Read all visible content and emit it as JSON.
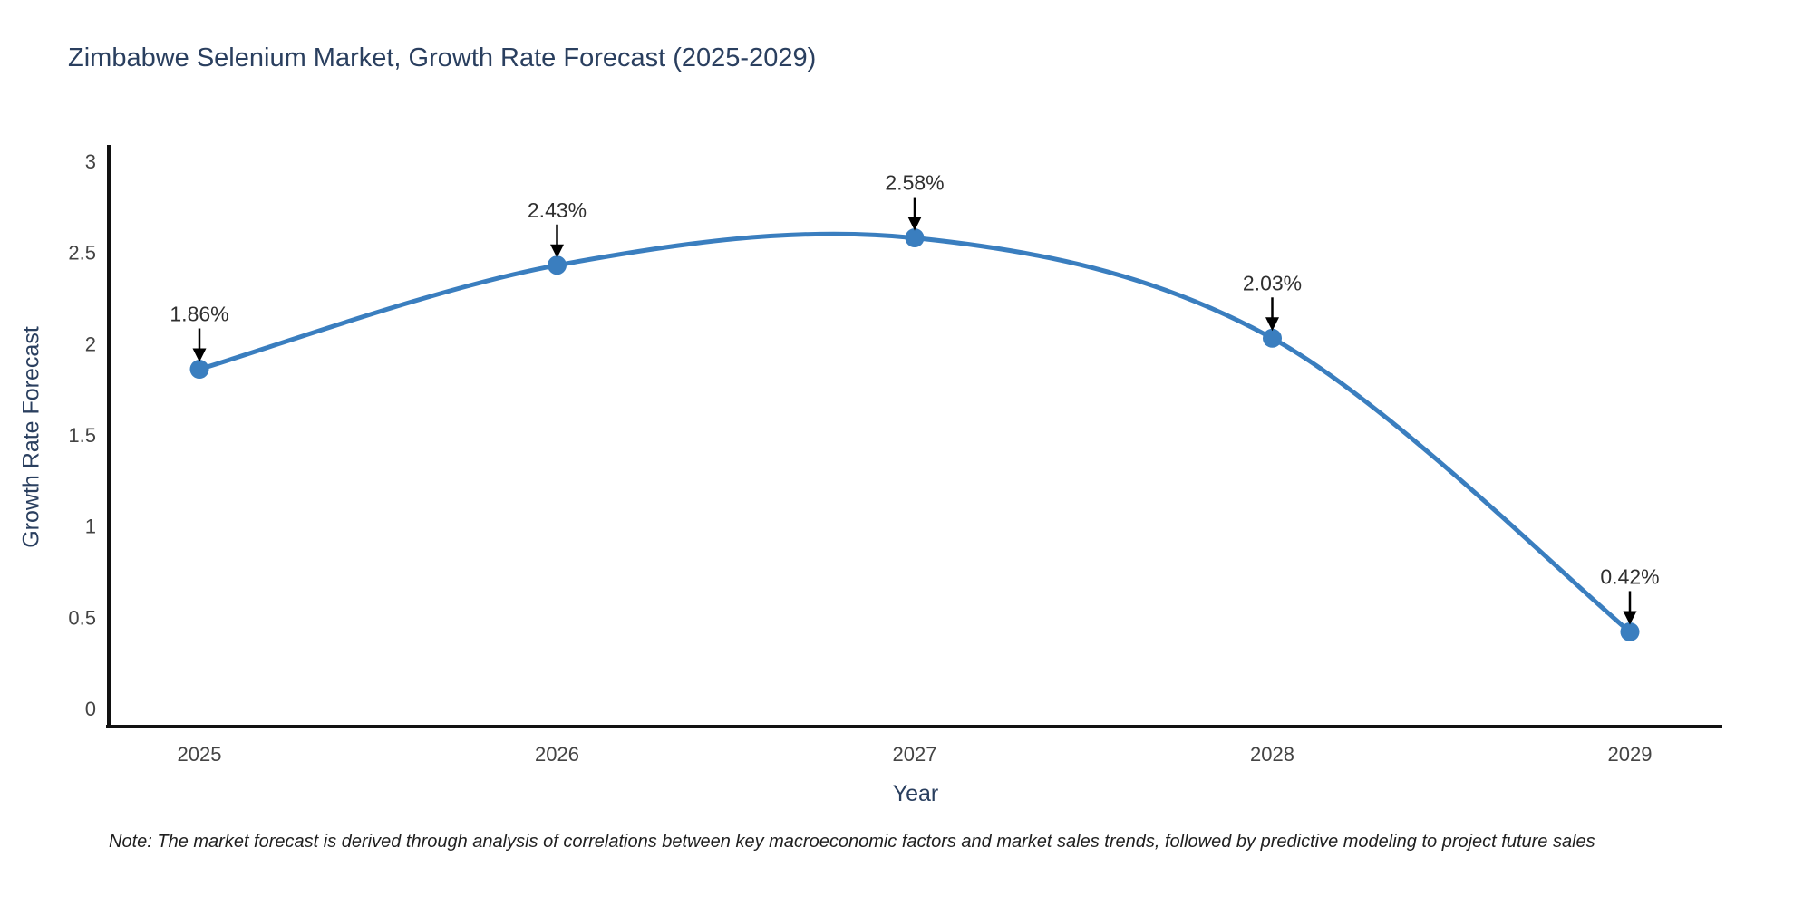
{
  "title": "Zimbabwe Selenium Market, Growth Rate Forecast (2025-2029)",
  "note": "Note: The market forecast is derived through analysis of correlations between key macroeconomic factors and market sales trends, followed by predictive modeling to project future sales",
  "colors": {
    "line": "#3a7ebf",
    "marker": "#3a7ebf",
    "axis": "#111111",
    "heading_text": "#2a3f5f",
    "tick_text": "#444444",
    "point_label_text": "#2f2f2f",
    "arrow": "#000000",
    "background": "#ffffff"
  },
  "chart_data": {
    "type": "line",
    "x": [
      "2025",
      "2026",
      "2027",
      "2028",
      "2029"
    ],
    "values": [
      1.86,
      2.43,
      2.58,
      2.03,
      0.42
    ],
    "point_labels": [
      "1.86%",
      "2.43%",
      "2.58%",
      "2.03%",
      "0.42%"
    ],
    "title": "Zimbabwe Selenium Market, Growth Rate Forecast (2025-2029)",
    "xlabel": "Year",
    "ylabel": "Growth Rate Forecast",
    "ylim": [
      0,
      3
    ],
    "yticks": [
      "0",
      "0.5",
      "1",
      "1.5",
      "2",
      "2.5",
      "3"
    ],
    "line_shape": "spline",
    "markers": true,
    "grid": false,
    "legend": "none",
    "point_annotation_style": "label-with-down-arrow"
  }
}
